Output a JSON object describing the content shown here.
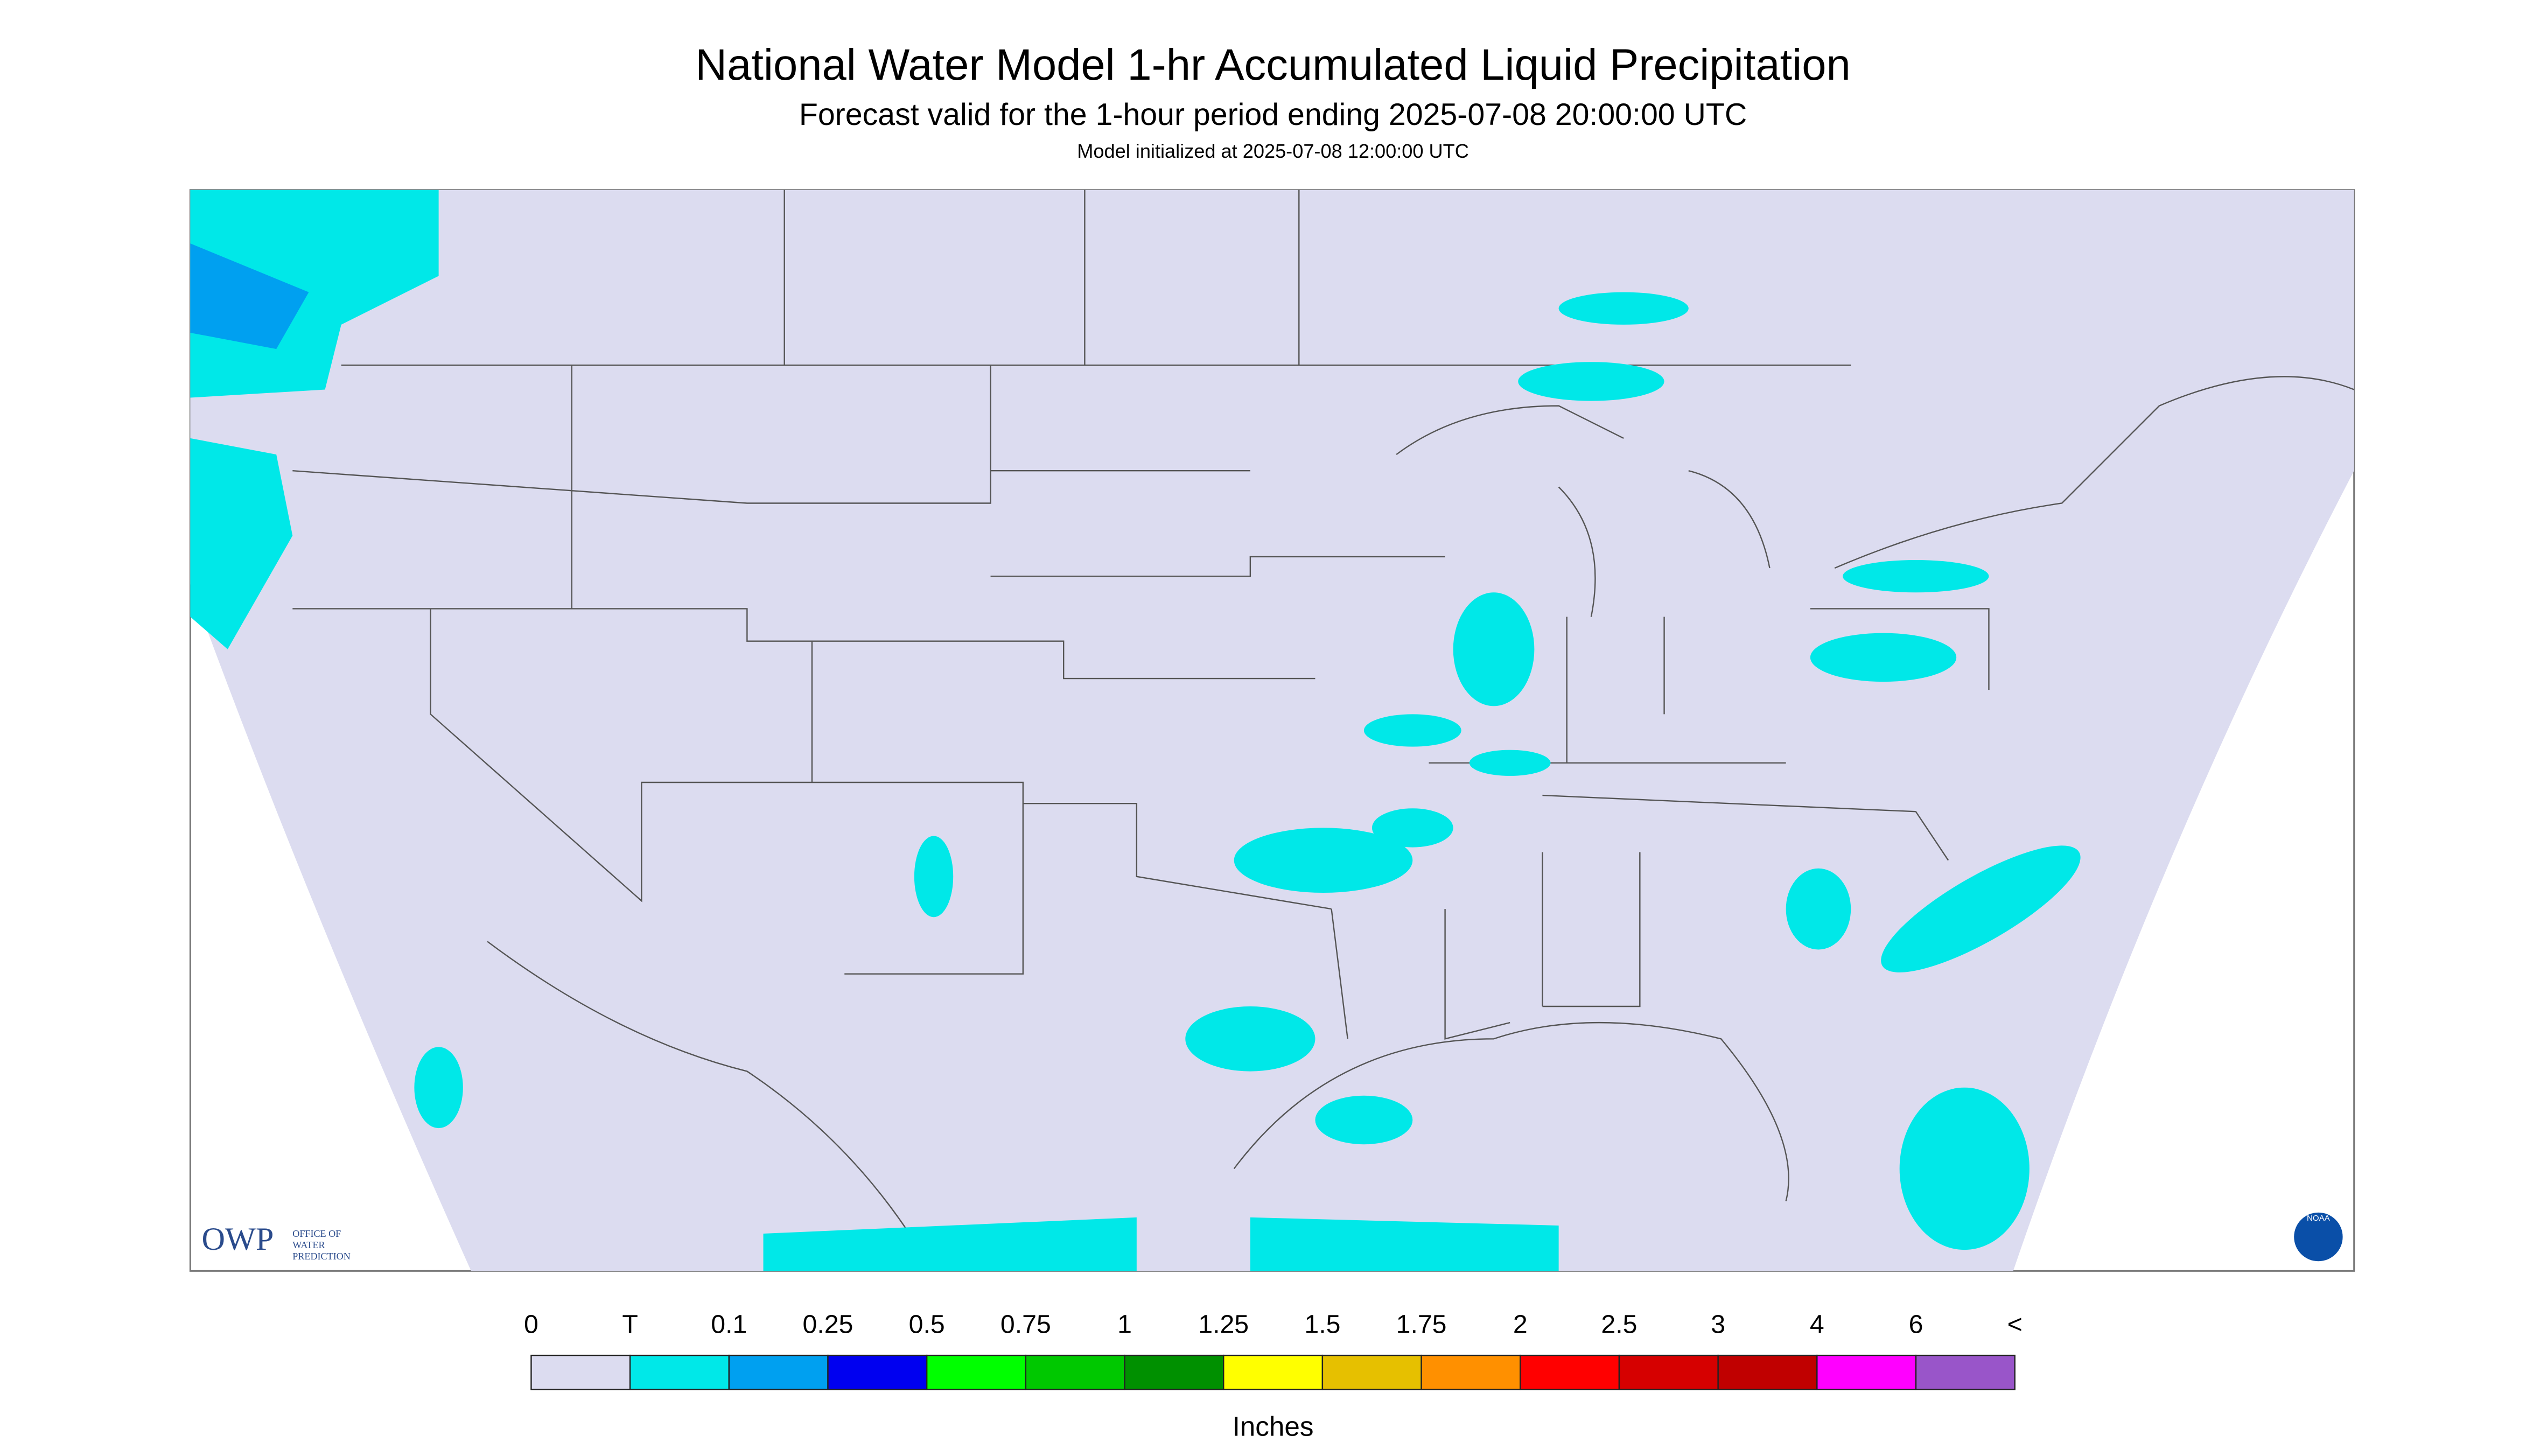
{
  "header": {
    "title": "National Water Model 1-hr Accumulated Liquid Precipitation",
    "subtitle": "Forecast valid for the 1-hour period ending 2025-07-08 20:00:00 UTC",
    "init": "Model initialized at 2025-07-08 12:00:00 UTC"
  },
  "logos": {
    "owp": "OWP",
    "owp_line1": "OFFICE OF",
    "owp_line2": "WATER",
    "owp_line3": "PREDICTION",
    "noaa": "NOAA"
  },
  "legend": {
    "ticks": [
      "0",
      "T",
      "0.1",
      "0.25",
      "0.5",
      "0.75",
      "1",
      "1.25",
      "1.5",
      "1.75",
      "2",
      "2.5",
      "3",
      "4",
      "6",
      "<"
    ],
    "colors": [
      "#dcdcf0",
      "#00e8e8",
      "#00a0f0",
      "#0000f0",
      "#00ff00",
      "#00c800",
      "#009000",
      "#ffff00",
      "#e6c000",
      "#ff9000",
      "#ff0000",
      "#d60000",
      "#c00000",
      "#ff00ff",
      "#9955c9"
    ],
    "unit": "Inches"
  }
}
